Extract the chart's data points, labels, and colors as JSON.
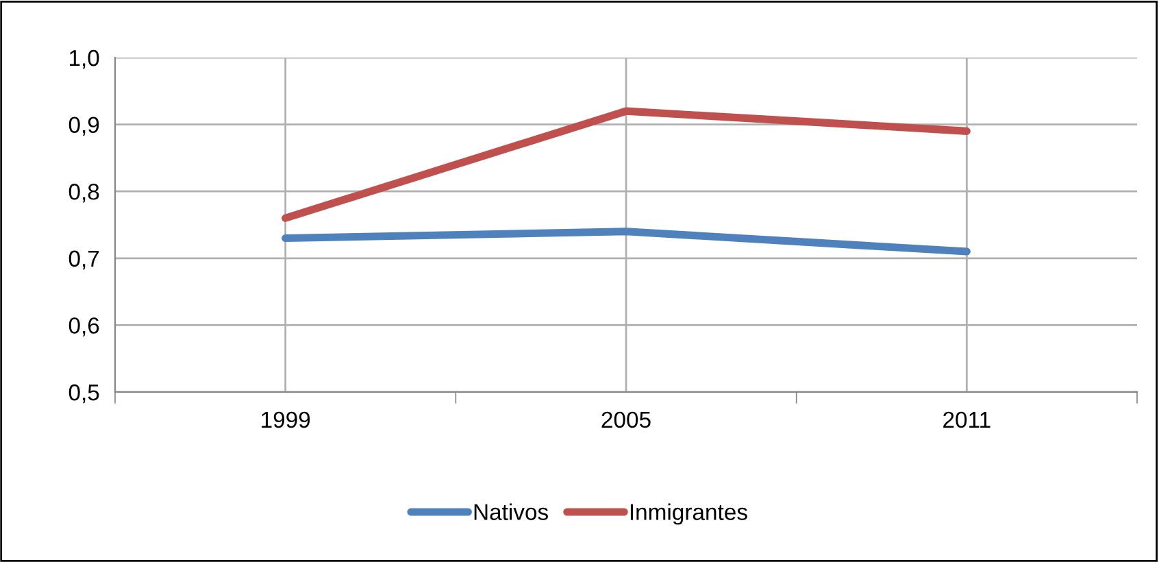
{
  "chart_data": {
    "type": "line",
    "categories": [
      "1999",
      "2005",
      "2011"
    ],
    "series": [
      {
        "name": "Nativos",
        "color": "#4f81bd",
        "values": [
          0.73,
          0.74,
          0.71
        ]
      },
      {
        "name": "Inmigrantes",
        "color": "#c0504d",
        "values": [
          0.76,
          0.92,
          0.89
        ]
      }
    ],
    "ylim": [
      0.5,
      1.0
    ],
    "yticks": [
      {
        "value": 0.5,
        "label": "0,5"
      },
      {
        "value": 0.6,
        "label": "0,6"
      },
      {
        "value": 0.7,
        "label": "0,7"
      },
      {
        "value": 0.8,
        "label": "0,8"
      },
      {
        "value": 0.9,
        "label": "0,9"
      },
      {
        "value": 1.0,
        "label": "1,0"
      }
    ],
    "grid": true,
    "legend": "bottom",
    "marker": "none",
    "line_style": "solid"
  }
}
